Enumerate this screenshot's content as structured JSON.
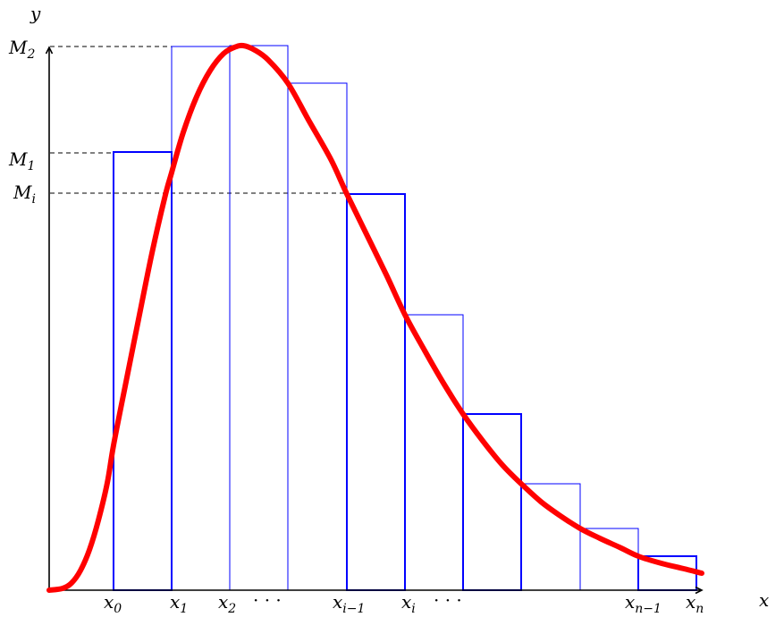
{
  "labels": {
    "y_axis": "y",
    "x_axis": "x",
    "M2": {
      "base": "M",
      "sub": "2"
    },
    "M1": {
      "base": "M",
      "sub": "1"
    },
    "Mi": {
      "base": "M",
      "sub": "i"
    },
    "x0": {
      "base": "x",
      "sub": "0"
    },
    "x1": {
      "base": "x",
      "sub": "1"
    },
    "x2": {
      "base": "x",
      "sub": "2"
    },
    "dots1": "· · ·",
    "xim1": {
      "base": "x",
      "sub": "i−1"
    },
    "xi": {
      "base": "x",
      "sub": "i"
    },
    "dots2": "· · ·",
    "xnm1": {
      "base": "x",
      "sub": "n−1"
    },
    "xn": {
      "base": "x",
      "sub": "n"
    }
  },
  "colors": {
    "curve": "#ff0000",
    "rectangles": "#0000ff",
    "axes": "#000000"
  }
}
